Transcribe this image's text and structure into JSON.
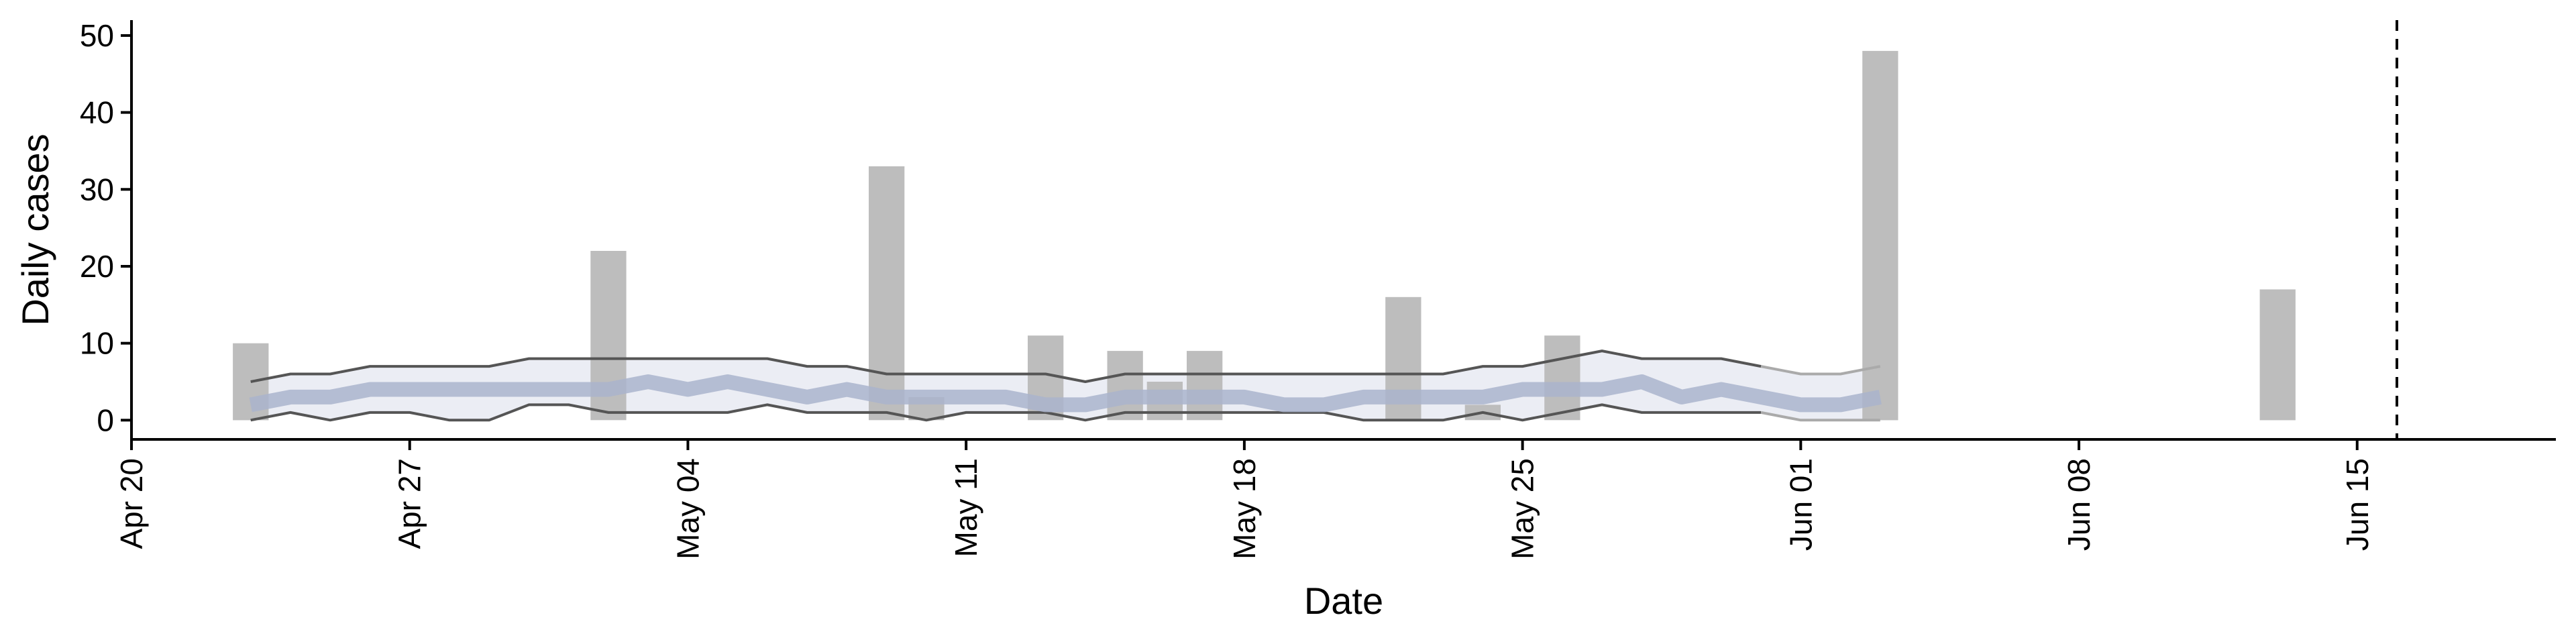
{
  "chart_data": {
    "type": "bar",
    "title": "",
    "xlabel": "Date",
    "ylabel": "Daily cases",
    "x_range": [
      "2020-04-20",
      "2020-06-20"
    ],
    "ylim": [
      -2.5,
      52
    ],
    "yticks": [
      0,
      10,
      20,
      30,
      40,
      50
    ],
    "xticks": [
      {
        "date": "2020-04-20",
        "label": "Apr 20"
      },
      {
        "date": "2020-04-27",
        "label": "Apr 27"
      },
      {
        "date": "2020-05-04",
        "label": "May 04"
      },
      {
        "date": "2020-05-11",
        "label": "May 11"
      },
      {
        "date": "2020-05-18",
        "label": "May 18"
      },
      {
        "date": "2020-05-25",
        "label": "May 25"
      },
      {
        "date": "2020-06-01",
        "label": "Jun 01"
      },
      {
        "date": "2020-06-08",
        "label": "Jun 08"
      },
      {
        "date": "2020-06-15",
        "label": "Jun 15"
      }
    ],
    "grid": false,
    "reference_line": {
      "date": "2020-06-16",
      "style": "dashed"
    },
    "series": [
      {
        "type": "bar",
        "color": "#bdbdbd",
        "points": [
          {
            "x": "2020-04-23",
            "y": 10
          },
          {
            "x": "2020-05-02",
            "y": 22
          },
          {
            "x": "2020-05-09",
            "y": 33
          },
          {
            "x": "2020-05-10",
            "y": 3
          },
          {
            "x": "2020-05-13",
            "y": 11
          },
          {
            "x": "2020-05-15",
            "y": 9
          },
          {
            "x": "2020-05-16",
            "y": 5
          },
          {
            "x": "2020-05-17",
            "y": 9
          },
          {
            "x": "2020-05-22",
            "y": 16
          },
          {
            "x": "2020-05-24",
            "y": 2
          },
          {
            "x": "2020-05-26",
            "y": 11
          },
          {
            "x": "2020-06-03",
            "y": 48
          },
          {
            "x": "2020-06-13",
            "y": 17
          }
        ]
      },
      {
        "type": "area_band",
        "fill": "#e8eaf2",
        "upper_color": "#555555",
        "lower_color": "#555555",
        "faded_color": "#aaaaaa",
        "faded_from": "2020-05-31",
        "x": [
          "2020-04-23",
          "2020-04-24",
          "2020-04-25",
          "2020-04-26",
          "2020-04-27",
          "2020-04-28",
          "2020-04-29",
          "2020-04-30",
          "2020-05-01",
          "2020-05-02",
          "2020-05-03",
          "2020-05-04",
          "2020-05-05",
          "2020-05-06",
          "2020-05-07",
          "2020-05-08",
          "2020-05-09",
          "2020-05-10",
          "2020-05-11",
          "2020-05-12",
          "2020-05-13",
          "2020-05-14",
          "2020-05-15",
          "2020-05-16",
          "2020-05-17",
          "2020-05-18",
          "2020-05-19",
          "2020-05-20",
          "2020-05-21",
          "2020-05-22",
          "2020-05-23",
          "2020-05-24",
          "2020-05-25",
          "2020-05-26",
          "2020-05-27",
          "2020-05-28",
          "2020-05-29",
          "2020-05-30",
          "2020-05-31",
          "2020-06-01",
          "2020-06-02",
          "2020-06-03"
        ],
        "upper": [
          5,
          6,
          6,
          7,
          7,
          7,
          7,
          8,
          8,
          8,
          8,
          8,
          8,
          8,
          7,
          7,
          6,
          6,
          6,
          6,
          6,
          5,
          6,
          6,
          6,
          6,
          6,
          6,
          6,
          6,
          6,
          7,
          7,
          8,
          9,
          8,
          8,
          8,
          7,
          6,
          6,
          7
        ],
        "lower": [
          0,
          1,
          0,
          1,
          1,
          0,
          0,
          2,
          2,
          1,
          1,
          1,
          1,
          2,
          1,
          1,
          1,
          0,
          1,
          1,
          1,
          0,
          1,
          1,
          1,
          1,
          1,
          1,
          0,
          0,
          0,
          1,
          0,
          1,
          2,
          1,
          1,
          1,
          1,
          0,
          0,
          0
        ]
      },
      {
        "type": "line",
        "color": "#aab4cc",
        "x": [
          "2020-04-23",
          "2020-04-24",
          "2020-04-25",
          "2020-04-26",
          "2020-04-27",
          "2020-04-28",
          "2020-04-29",
          "2020-04-30",
          "2020-05-01",
          "2020-05-02",
          "2020-05-03",
          "2020-05-04",
          "2020-05-05",
          "2020-05-06",
          "2020-05-07",
          "2020-05-08",
          "2020-05-09",
          "2020-05-10",
          "2020-05-11",
          "2020-05-12",
          "2020-05-13",
          "2020-05-14",
          "2020-05-15",
          "2020-05-16",
          "2020-05-17",
          "2020-05-18",
          "2020-05-19",
          "2020-05-20",
          "2020-05-21",
          "2020-05-22",
          "2020-05-23",
          "2020-05-24",
          "2020-05-25",
          "2020-05-26",
          "2020-05-27",
          "2020-05-28",
          "2020-05-29",
          "2020-05-30",
          "2020-05-31",
          "2020-06-01",
          "2020-06-02",
          "2020-06-03"
        ],
        "y": [
          2,
          3,
          3,
          4,
          4,
          4,
          4,
          4,
          4,
          4,
          5,
          4,
          5,
          4,
          3,
          4,
          3,
          3,
          3,
          3,
          2,
          2,
          3,
          3,
          3,
          3,
          2,
          2,
          3,
          3,
          3,
          3,
          4,
          4,
          4,
          5,
          3,
          4,
          3,
          2,
          2,
          3
        ]
      }
    ]
  }
}
